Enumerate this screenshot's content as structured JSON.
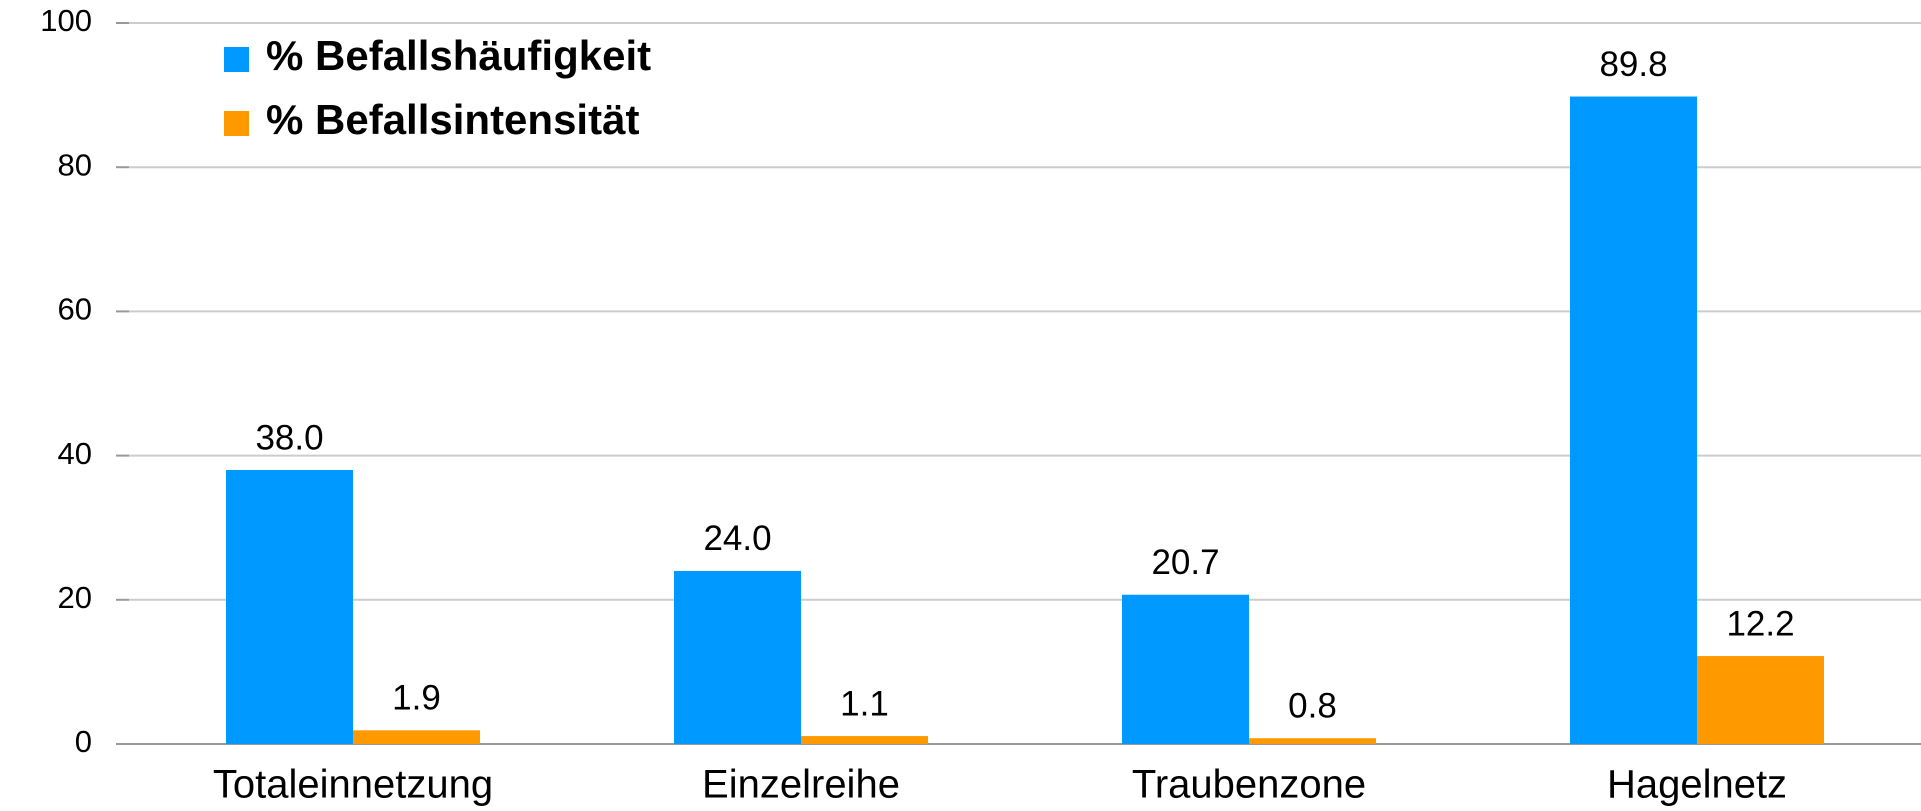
{
  "chart_data": {
    "type": "bar",
    "categories": [
      "Totaleinnetzung",
      "Einzelreihe",
      "Traubenzone",
      "Hagelnetz"
    ],
    "series": [
      {
        "name": "% Befallshäufigkeit",
        "color": "#0099ff",
        "values": [
          38,
          24,
          20.7,
          89.8
        ],
        "value_labels": [
          "38.0",
          "24.0",
          "20.7",
          "89.8"
        ]
      },
      {
        "name": "% Befallsintensität",
        "color": "#ff9900",
        "values": [
          1.9,
          1.1,
          0.8,
          12.2
        ],
        "value_labels": [
          "1.9",
          "1.1",
          "0.8",
          "12.2"
        ]
      }
    ],
    "ylim": [
      0,
      100
    ],
    "yticks": [
      0,
      20,
      40,
      60,
      80,
      100
    ],
    "grid": true,
    "legend": "top-left"
  }
}
